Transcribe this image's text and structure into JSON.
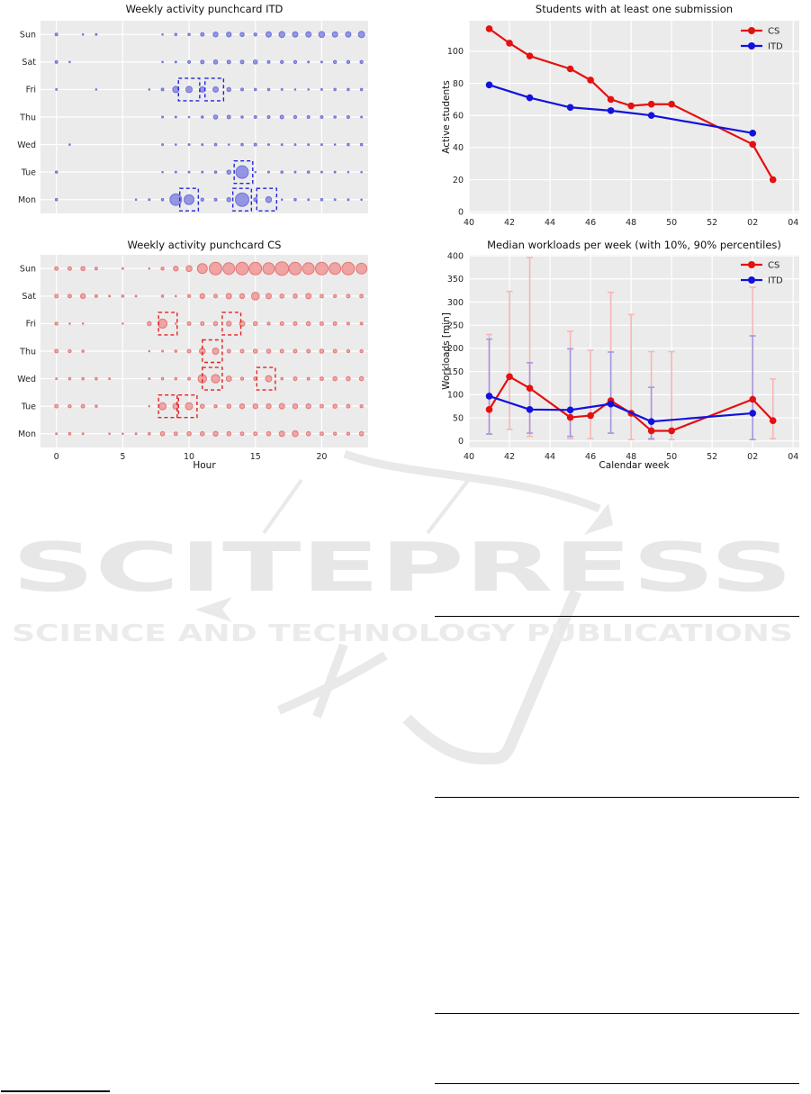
{
  "watermark": {
    "line1": "SCITEPRESS",
    "line2": "SCIENCE AND TECHNOLOGY PUBLICATIONS"
  },
  "colors": {
    "plot_background": "#ebebeb",
    "gridline": "#ffffff",
    "cs_line": "#e51010",
    "itd_line": "#1212dd",
    "cs_errorbar": "#f5b6b6",
    "itd_errorbar": "#a897dd",
    "itd_bubble": "#7d7fe0",
    "cs_bubble": "#f09191",
    "itd_highlight": "#2424d8",
    "cs_highlight": "#e32222",
    "watermark_gray": "#e8e8e8"
  },
  "chart_data": [
    {
      "type": "punchcard",
      "title": "Weekly activity punchcard ITD",
      "xlabel": "",
      "days": [
        "Sun",
        "Sat",
        "Fri",
        "Thu",
        "Wed",
        "Tue",
        "Mon"
      ],
      "hour_tick_values": [
        0,
        5,
        10,
        15,
        20
      ],
      "hour_tick_labels": [
        "0",
        "5",
        "10",
        "15",
        "20"
      ],
      "show_hour_ticks": false,
      "xlim": [
        -1.2,
        23.5
      ],
      "bubble_fill": "#7d7fe0",
      "bubble_stroke": "#6165d2",
      "highlight_color": "#2424d8",
      "sizes": [
        [
          1.5,
          0,
          0.7,
          1,
          0,
          0,
          0,
          0,
          0.7,
          1.3,
          1.3,
          2,
          2.7,
          2.7,
          2.3,
          1.7,
          3,
          3.3,
          3,
          3,
          3.3,
          3,
          3,
          3.5
        ],
        [
          1.5,
          0.7,
          0,
          0,
          0,
          0,
          0,
          0,
          0.7,
          1,
          1.5,
          2,
          2.3,
          2,
          2,
          2.3,
          1.5,
          1.7,
          1.7,
          1,
          1,
          1.7,
          1.7,
          1.7
        ],
        [
          1,
          0,
          0,
          0.7,
          0,
          0,
          0,
          0.7,
          1.5,
          3.5,
          3.5,
          3,
          3,
          2.3,
          1.5,
          1.3,
          1.3,
          1,
          0.7,
          0.7,
          1,
          1.3,
          1.3,
          1.3
        ],
        [
          0,
          0,
          0,
          0,
          0,
          0,
          0,
          0,
          1,
          1,
          0.8,
          1.3,
          2.3,
          2,
          1.3,
          1.5,
          1.5,
          2,
          1.7,
          1.5,
          1.5,
          1.3,
          1.5,
          1
        ],
        [
          0,
          0.5,
          0,
          0,
          0,
          0,
          0,
          0,
          1,
          0.7,
          1,
          1,
          1.3,
          0.8,
          1.3,
          1.5,
          1,
          1,
          1,
          1,
          1,
          0.7,
          1.3,
          1.3
        ],
        [
          1.3,
          0,
          0,
          0,
          0,
          0,
          0,
          0,
          0.7,
          1,
          1,
          1,
          1.3,
          2.3,
          7,
          0.7,
          1,
          1.3,
          1,
          1.3,
          1,
          1,
          0.7,
          0.7
        ],
        [
          1.3,
          0,
          0,
          0,
          0,
          0,
          0.7,
          1,
          1.3,
          6.5,
          5.5,
          1.7,
          1.5,
          2.3,
          7.5,
          2,
          3.3,
          0.8,
          1.3,
          1,
          1.3,
          1,
          1,
          0.7
        ]
      ],
      "highlights": [
        {
          "day": "Fri",
          "from": 9.2,
          "to": 10.8
        },
        {
          "day": "Fri",
          "from": 11.2,
          "to": 12.6
        },
        {
          "day": "Tue",
          "from": 13.4,
          "to": 14.8
        },
        {
          "day": "Mon",
          "from": 9.3,
          "to": 10.7
        },
        {
          "day": "Mon",
          "from": 13.3,
          "to": 14.7
        },
        {
          "day": "Mon",
          "from": 15.1,
          "to": 16.6
        }
      ]
    },
    {
      "type": "punchcard",
      "title": "Weekly activity punchcard CS",
      "xlabel": "Hour",
      "days": [
        "Sun",
        "Sat",
        "Fri",
        "Thu",
        "Wed",
        "Tue",
        "Mon"
      ],
      "hour_tick_values": [
        0,
        5,
        10,
        15,
        20
      ],
      "hour_tick_labels": [
        "0",
        "5",
        "10",
        "15",
        "20"
      ],
      "show_hour_ticks": true,
      "xlim": [
        -1.2,
        23.5
      ],
      "bubble_fill": "#f09191",
      "bubble_stroke": "#e06a6a",
      "highlight_color": "#e32222",
      "sizes": [
        [
          2,
          2,
          2.3,
          1.5,
          0,
          1,
          0,
          0.8,
          1.7,
          2.7,
          3.3,
          5.5,
          7,
          6.5,
          7,
          7,
          6.5,
          7.5,
          7,
          6.5,
          7,
          6.5,
          7,
          6
        ],
        [
          2,
          2,
          2.7,
          1.5,
          1,
          1.3,
          1,
          0,
          1.3,
          0.8,
          1.7,
          2.7,
          2,
          3,
          2.7,
          4.3,
          3,
          2.3,
          2.3,
          3,
          2,
          1.7,
          2,
          2
        ],
        [
          1.7,
          0.8,
          0.7,
          0,
          0,
          0.8,
          0,
          2.3,
          5,
          0.8,
          2,
          2,
          2.3,
          2.7,
          3,
          2.3,
          1.7,
          2,
          2,
          2.3,
          2,
          2,
          1.5,
          1.5
        ],
        [
          2,
          1.7,
          1.3,
          0,
          0,
          0,
          0,
          0.7,
          1,
          1.3,
          2,
          3.3,
          3.5,
          2,
          2,
          2.3,
          2.3,
          2,
          2,
          2,
          2.3,
          2,
          1.7,
          1.7
        ],
        [
          1,
          1.3,
          1.3,
          1.3,
          1,
          0,
          0,
          1,
          1.3,
          1.3,
          1.5,
          4.7,
          4.7,
          3,
          1.7,
          2,
          3.5,
          1.3,
          2,
          1.5,
          2,
          2.3,
          2.3,
          2.3
        ],
        [
          2,
          1.7,
          2,
          1.3,
          0,
          0,
          0,
          0.8,
          4,
          3.3,
          4,
          2.3,
          1.7,
          2.3,
          2.7,
          2.7,
          2.7,
          3,
          2.7,
          2.7,
          2,
          2.3,
          2,
          1.7
        ],
        [
          1,
          1.3,
          1,
          0,
          0.7,
          0.8,
          1,
          1.3,
          2.3,
          2,
          2.3,
          2.3,
          2.7,
          2.3,
          2,
          2,
          2.3,
          3,
          3.3,
          2.3,
          2,
          1.7,
          1.7,
          2.3
        ]
      ],
      "highlights": [
        {
          "day": "Fri",
          "from": 7.7,
          "to": 9.1
        },
        {
          "day": "Fri",
          "from": 12.5,
          "to": 13.9
        },
        {
          "day": "Thu",
          "from": 11.0,
          "to": 12.5
        },
        {
          "day": "Wed",
          "from": 11.0,
          "to": 12.5
        },
        {
          "day": "Wed",
          "from": 15.1,
          "to": 16.5
        },
        {
          "day": "Tue",
          "from": 7.7,
          "to": 9.1
        },
        {
          "day": "Tue",
          "from": 9.2,
          "to": 10.6
        }
      ]
    },
    {
      "type": "line",
      "title": "Students with at least one submission",
      "ylabel": "Active students",
      "xlabel": "",
      "xlim": [
        40,
        56.3
      ],
      "ylim": [
        -1,
        119
      ],
      "x_ticks": [
        {
          "v": 40,
          "label": "40"
        },
        {
          "v": 42,
          "label": "42"
        },
        {
          "v": 44,
          "label": "44"
        },
        {
          "v": 46,
          "label": "46"
        },
        {
          "v": 48,
          "label": "48"
        },
        {
          "v": 50,
          "label": "50"
        },
        {
          "v": 52,
          "label": "52"
        },
        {
          "v": 54,
          "label": "02"
        },
        {
          "v": 56,
          "label": "04"
        }
      ],
      "y_ticks": [
        {
          "v": 0,
          "label": "0"
        },
        {
          "v": 20,
          "label": "20"
        },
        {
          "v": 40,
          "label": "40"
        },
        {
          "v": 60,
          "label": "60"
        },
        {
          "v": 80,
          "label": "80"
        },
        {
          "v": 100,
          "label": "100"
        }
      ],
      "series": [
        {
          "name": "CS",
          "color": "#e51010",
          "x": [
            41,
            42,
            43,
            45,
            46,
            47,
            48,
            49,
            50,
            54,
            55
          ],
          "y": [
            114,
            105,
            97,
            89,
            82,
            70,
            66,
            67,
            67,
            42,
            20
          ]
        },
        {
          "name": "ITD",
          "color": "#1212dd",
          "x": [
            41,
            43,
            45,
            47,
            49,
            54
          ],
          "y": [
            79,
            71,
            65,
            63,
            60,
            49
          ]
        }
      ]
    },
    {
      "type": "line",
      "title": "Median workloads per week (with 10%, 90% percentiles)",
      "ylabel": "Workloads [min]",
      "xlabel": "Calendar week",
      "xlim": [
        40,
        56.3
      ],
      "ylim": [
        -14,
        402
      ],
      "x_ticks": [
        {
          "v": 40,
          "label": "40"
        },
        {
          "v": 42,
          "label": "42"
        },
        {
          "v": 44,
          "label": "44"
        },
        {
          "v": 46,
          "label": "46"
        },
        {
          "v": 48,
          "label": "48"
        },
        {
          "v": 50,
          "label": "50"
        },
        {
          "v": 52,
          "label": "52"
        },
        {
          "v": 54,
          "label": "02"
        },
        {
          "v": 56,
          "label": "04"
        }
      ],
      "y_ticks": [
        {
          "v": 0,
          "label": "0"
        },
        {
          "v": 50,
          "label": "50"
        },
        {
          "v": 100,
          "label": "100"
        },
        {
          "v": 150,
          "label": "150"
        },
        {
          "v": 200,
          "label": "200"
        },
        {
          "v": 250,
          "label": "250"
        },
        {
          "v": 300,
          "label": "300"
        },
        {
          "v": 350,
          "label": "350"
        },
        {
          "v": 400,
          "label": "400"
        }
      ],
      "series": [
        {
          "name": "CS",
          "color": "#e51010",
          "err_color": "#f5b6b6",
          "x": [
            41,
            42,
            43,
            45,
            46,
            47,
            48,
            49,
            50,
            54,
            55
          ],
          "y": [
            68,
            139,
            114,
            51,
            55,
            87,
            60,
            22,
            22,
            90,
            44
          ],
          "lo": [
            15,
            25,
            10,
            5,
            5,
            17,
            3,
            3,
            3,
            3,
            5
          ],
          "hi": [
            230,
            323,
            396,
            237,
            196,
            321,
            273,
            193,
            193,
            332,
            134
          ]
        },
        {
          "name": "ITD",
          "color": "#1212dd",
          "err_color": "#a897dd",
          "x": [
            41,
            43,
            45,
            47,
            49,
            54
          ],
          "y": [
            97,
            68,
            67,
            80,
            42,
            60
          ],
          "lo": [
            15,
            17,
            10,
            17,
            5,
            3
          ],
          "hi": [
            220,
            169,
            199,
            192,
            116,
            227
          ]
        }
      ]
    }
  ]
}
